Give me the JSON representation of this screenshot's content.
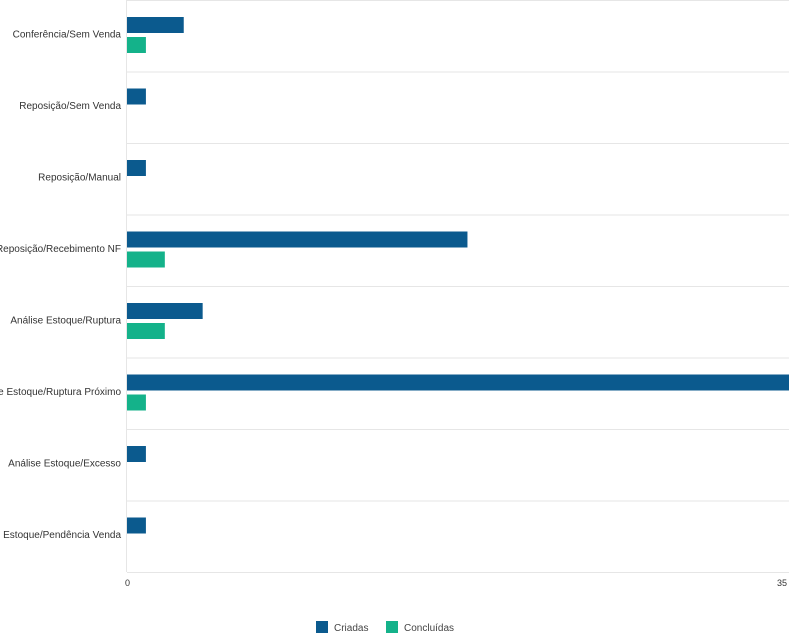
{
  "chart_data": {
    "type": "bar",
    "orientation": "horizontal",
    "categories": [
      "Conferência/Sem Venda",
      "Reposição/Sem Venda",
      "Reposição/Manual",
      "Reposição/Recebimento NF",
      "Análise Estoque/Ruptura",
      "Análise Estoque/Ruptura Próximo",
      "Análise Estoque/Excesso",
      "Análise Estoque/Pendência Venda"
    ],
    "series": [
      {
        "name": "Criadas",
        "color": "#0b5a8e",
        "values": [
          3,
          1,
          1,
          18,
          4,
          35,
          1,
          1
        ]
      },
      {
        "name": "Concluídas",
        "color": "#14b28a",
        "values": [
          1,
          null,
          null,
          2,
          2,
          1,
          null,
          null
        ]
      }
    ],
    "xlim": [
      0,
      35
    ],
    "x_ticks": [
      "0",
      "35"
    ],
    "grid": true,
    "legend_position": "bottom-center"
  }
}
